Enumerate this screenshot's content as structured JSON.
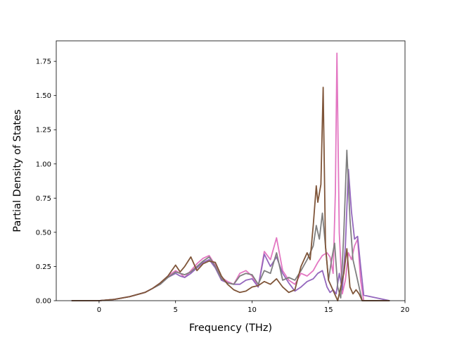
{
  "chart_data": {
    "type": "line",
    "title": "",
    "xlabel": "Frequency (THz)",
    "ylabel": "Partial Density of States",
    "xlim": [
      -2.8,
      20
    ],
    "ylim": [
      0,
      1.9
    ],
    "x_ticks": [
      0,
      5,
      10,
      15,
      20
    ],
    "y_ticks": [
      0.0,
      0.25,
      0.5,
      0.75,
      1.0,
      1.25,
      1.5,
      1.75
    ],
    "x_tick_labels": [
      "0",
      "5",
      "10",
      "15",
      "20"
    ],
    "y_tick_labels": [
      "0.00",
      "0.25",
      "0.50",
      "0.75",
      "1.00",
      "1.25",
      "1.50",
      "1.75"
    ],
    "grid": false,
    "legend": "none",
    "series": [
      {
        "color": "#e377c2",
        "x": [
          -1.8,
          0,
          1,
          2,
          3,
          3.5,
          4,
          4.5,
          5,
          5.3,
          5.6,
          6,
          6.4,
          6.8,
          7.2,
          7.6,
          8,
          8.4,
          8.8,
          9.2,
          9.6,
          10,
          10.4,
          10.8,
          11.2,
          11.6,
          12,
          12.4,
          12.8,
          13.2,
          13.6,
          14,
          14.3,
          14.6,
          14.9,
          15.1,
          15.3,
          15.45,
          15.55,
          15.7,
          15.9,
          16.1,
          16.3,
          16.5,
          16.7,
          16.9,
          17.1,
          17.3,
          19
        ],
        "y": [
          0,
          0,
          0.01,
          0.03,
          0.06,
          0.09,
          0.13,
          0.18,
          0.22,
          0.2,
          0.17,
          0.22,
          0.27,
          0.31,
          0.33,
          0.26,
          0.17,
          0.14,
          0.12,
          0.2,
          0.22,
          0.18,
          0.1,
          0.36,
          0.3,
          0.46,
          0.22,
          0.15,
          0.12,
          0.2,
          0.18,
          0.22,
          0.28,
          0.33,
          0.35,
          0.32,
          0.2,
          0.8,
          1.81,
          0.5,
          0.05,
          0.15,
          0.35,
          0.3,
          0.4,
          0.45,
          0.15,
          0,
          0
        ]
      },
      {
        "color": "#9467bd",
        "x": [
          -1.8,
          0,
          1,
          2,
          3,
          3.5,
          4,
          4.5,
          5,
          5.3,
          5.6,
          6,
          6.4,
          6.8,
          7.2,
          7.6,
          8,
          8.4,
          8.8,
          9.2,
          9.6,
          10,
          10.4,
          10.8,
          11.2,
          11.6,
          12,
          12.4,
          12.8,
          13.2,
          13.6,
          14,
          14.3,
          14.6,
          14.9,
          15.1,
          15.3,
          15.5,
          15.7,
          15.9,
          16.1,
          16.3,
          16.5,
          16.7,
          16.9,
          17.1,
          17.3,
          19
        ],
        "y": [
          0,
          0,
          0.01,
          0.03,
          0.06,
          0.09,
          0.12,
          0.17,
          0.2,
          0.18,
          0.17,
          0.2,
          0.24,
          0.28,
          0.3,
          0.24,
          0.15,
          0.13,
          0.12,
          0.12,
          0.15,
          0.16,
          0.1,
          0.34,
          0.25,
          0.32,
          0.2,
          0.13,
          0.07,
          0.1,
          0.14,
          0.16,
          0.2,
          0.22,
          0.1,
          0.06,
          0.08,
          0.05,
          0.2,
          0.08,
          0.4,
          0.96,
          0.65,
          0.45,
          0.47,
          0.25,
          0.04,
          0
        ]
      },
      {
        "color": "#7f7f7f",
        "x": [
          -1.8,
          0,
          1,
          2,
          3,
          3.5,
          4,
          4.5,
          5,
          5.3,
          5.6,
          6,
          6.4,
          6.8,
          7.2,
          7.6,
          8,
          8.4,
          8.8,
          9.2,
          9.6,
          10,
          10.4,
          10.8,
          11.2,
          11.6,
          12,
          12.4,
          12.8,
          13.2,
          13.6,
          14,
          14.2,
          14.4,
          14.6,
          14.8,
          15,
          15.2,
          15.4,
          15.6,
          15.8,
          16,
          16.2,
          16.4,
          16.6,
          16.8,
          17,
          17.2,
          19
        ],
        "y": [
          0,
          0,
          0.01,
          0.03,
          0.06,
          0.09,
          0.12,
          0.17,
          0.21,
          0.2,
          0.19,
          0.21,
          0.25,
          0.29,
          0.32,
          0.25,
          0.16,
          0.13,
          0.12,
          0.18,
          0.2,
          0.19,
          0.12,
          0.22,
          0.2,
          0.35,
          0.15,
          0.17,
          0.15,
          0.22,
          0.3,
          0.4,
          0.55,
          0.45,
          0.64,
          0.4,
          0.15,
          0.3,
          0.42,
          0.1,
          0.02,
          0.5,
          1.1,
          0.6,
          0.3,
          0.2,
          0.1,
          0,
          0
        ]
      },
      {
        "color": "#7f5539",
        "x": [
          -1.8,
          0,
          1,
          2,
          3,
          3.5,
          4,
          4.5,
          5,
          5.3,
          5.6,
          6,
          6.4,
          6.8,
          7.2,
          7.6,
          8,
          8.4,
          8.8,
          9.2,
          9.6,
          10,
          10.4,
          10.8,
          11.2,
          11.6,
          12,
          12.4,
          12.8,
          13.2,
          13.6,
          13.8,
          14,
          14.2,
          14.3,
          14.5,
          14.65,
          14.8,
          15,
          15.2,
          15.4,
          15.6,
          15.8,
          16,
          16.2,
          16.4,
          16.6,
          16.8,
          17,
          17.2,
          19
        ],
        "y": [
          0,
          0,
          0.01,
          0.03,
          0.06,
          0.09,
          0.13,
          0.18,
          0.26,
          0.21,
          0.25,
          0.32,
          0.22,
          0.27,
          0.29,
          0.28,
          0.18,
          0.12,
          0.08,
          0.06,
          0.07,
          0.1,
          0.11,
          0.14,
          0.12,
          0.16,
          0.1,
          0.06,
          0.08,
          0.25,
          0.35,
          0.3,
          0.55,
          0.84,
          0.72,
          0.85,
          1.56,
          0.4,
          0.15,
          0.1,
          0.05,
          0,
          0.1,
          0.2,
          0.38,
          0.1,
          0.05,
          0.08,
          0.05,
          0,
          0
        ]
      }
    ]
  }
}
